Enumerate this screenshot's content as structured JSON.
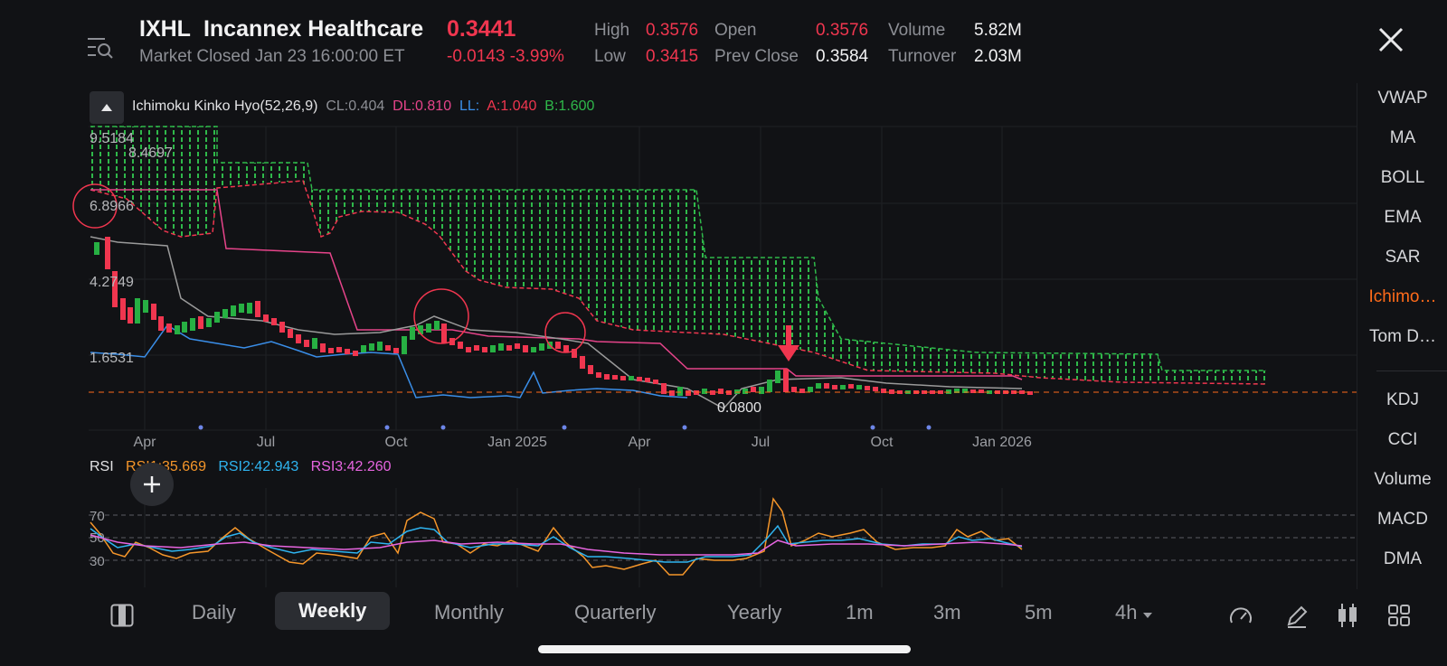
{
  "header": {
    "symbol": "IXHL",
    "name": "Incannex Healthcare",
    "price": "0.3441",
    "status": "Market Closed Jan 23 16:00:00 ET",
    "change": "-0.0143",
    "change_pct": "-3.99%",
    "stats": {
      "high_label": "High",
      "high": "0.3576",
      "low_label": "Low",
      "low": "0.3415",
      "open_label": "Open",
      "open": "0.3576",
      "prev_close_label": "Prev Close",
      "prev_close": "0.3584",
      "volume_label": "Volume",
      "volume": "5.82M",
      "turnover_label": "Turnover",
      "turnover": "2.03M"
    }
  },
  "indicator_legend": {
    "name": "Ichimoku Kinko Hyo(52,26,9)",
    "cl": "CL:0.404",
    "dl": "DL:0.810",
    "ll": "LL:",
    "a": "A:1.040",
    "b": "B:1.600"
  },
  "price_chart": {
    "y_labels": [
      "9.5184",
      "6.8966",
      "4.2749",
      "1.6531"
    ],
    "high_marker": "8.4697",
    "low_marker": "0.0800",
    "x_labels": [
      "Apr",
      "Jul",
      "Oct",
      "Jan 2025",
      "Apr",
      "Jul",
      "Oct",
      "Jan 2026"
    ]
  },
  "rsi": {
    "label": "RSI",
    "rsi1": "RSI1:35.669",
    "rsi2": "RSI2:42.943",
    "rsi3": "RSI3:42.260",
    "levels": [
      "70",
      "50",
      "30"
    ]
  },
  "sidebar": {
    "items": [
      "VWAP",
      "MA",
      "BOLL",
      "EMA",
      "SAR",
      "Ichimo…",
      "Tom D…",
      "KDJ",
      "CCI",
      "Volume",
      "MACD",
      "DMA"
    ],
    "active": "Ichimo…"
  },
  "timeframes": [
    "Daily",
    "Weekly",
    "Monthly",
    "Quarterly",
    "Yearly",
    "1m",
    "3m",
    "5m",
    "4h"
  ],
  "active_timeframe": "Weekly",
  "colors": {
    "up": "#27b043",
    "down": "#f0364f",
    "accent": "#ff6b1a",
    "rsi1": "#f5962a",
    "rsi2": "#2fb4f0",
    "rsi3": "#e765e0",
    "conversion_line": "#9a9a9a",
    "base_line": "#e6448a",
    "lagging_line": "#3a8ee8",
    "cloud": "#2fb84a"
  }
}
